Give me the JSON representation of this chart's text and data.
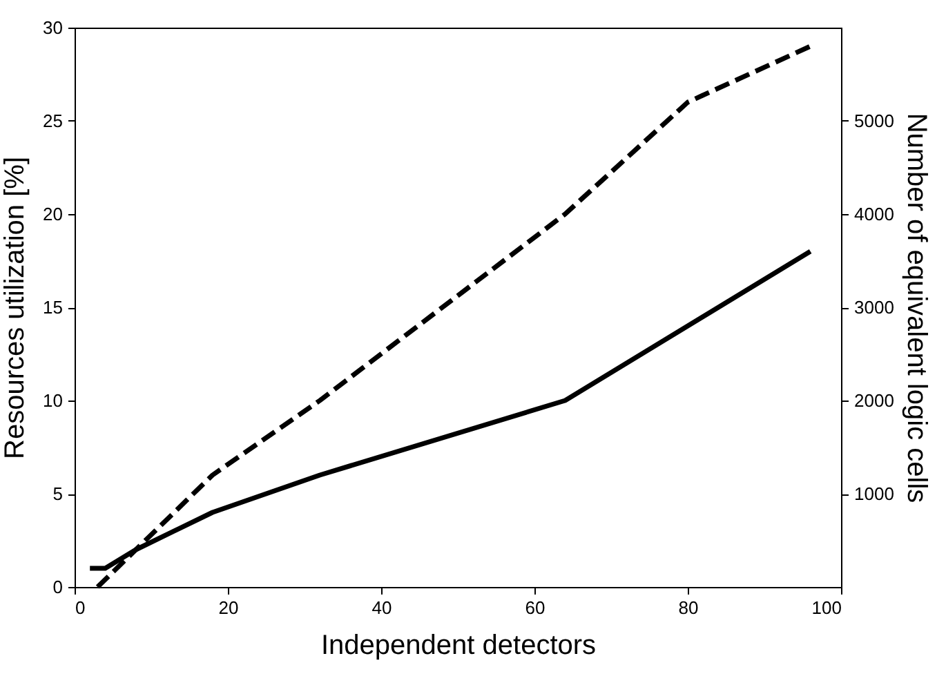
{
  "chart_data": {
    "type": "line",
    "xlabel": "Independent detectors",
    "ylabel": "Resources utilization [%]",
    "y2label": "Number of equivalent logic cells",
    "xlim": [
      0,
      100
    ],
    "xticks": [
      0,
      20,
      40,
      60,
      80,
      100
    ],
    "ylim": [
      0,
      30
    ],
    "yticks": [
      0,
      5,
      10,
      15,
      20,
      25,
      30
    ],
    "y2lim": [
      0,
      6000
    ],
    "y2ticks": [
      1000,
      2000,
      3000,
      4000,
      5000
    ],
    "series": [
      {
        "color": "#000000",
        "line_style": "solid",
        "x": [
          2,
          4,
          8,
          18,
          32,
          64,
          96
        ],
        "values": [
          1,
          1,
          2,
          4,
          6,
          10,
          18
        ]
      },
      {
        "color": "#000000",
        "line_style": "dashed",
        "x": [
          3,
          8,
          18,
          32,
          64,
          80,
          96
        ],
        "values": [
          0,
          2,
          6,
          10,
          20,
          26,
          29
        ]
      }
    ],
    "grid": false
  }
}
